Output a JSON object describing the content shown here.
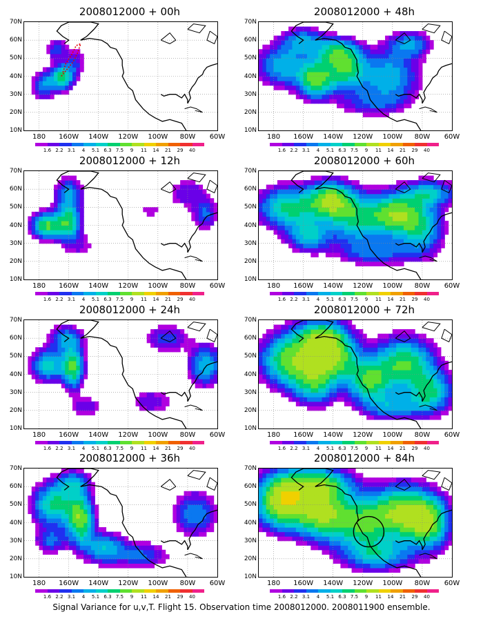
{
  "figure": {
    "caption": "Signal Variance for u,v,T. Flight 15. Observation time 2008012000. 2008011900 ensemble."
  },
  "panels": [
    {
      "title": "2008012000 + 00h",
      "lead_hours": 0
    },
    {
      "title": "2008012000 + 48h",
      "lead_hours": 48
    },
    {
      "title": "2008012000 + 12h",
      "lead_hours": 12
    },
    {
      "title": "2008012000 + 60h",
      "lead_hours": 60
    },
    {
      "title": "2008012000 + 24h",
      "lead_hours": 24
    },
    {
      "title": "2008012000 + 72h",
      "lead_hours": 72
    },
    {
      "title": "2008012000 + 36h",
      "lead_hours": 36
    },
    {
      "title": "2008012000 + 84h",
      "lead_hours": 84
    }
  ],
  "axes": {
    "lat_labels": [
      "70N",
      "60N",
      "50N",
      "40N",
      "30N",
      "20N",
      "10N"
    ],
    "lon_labels": [
      "180",
      "160W",
      "140W",
      "120W",
      "100W",
      "80W",
      "60W"
    ]
  },
  "colorbar": {
    "labels": [
      "1.6",
      "2.2",
      "3.1",
      "4",
      "5.1",
      "6.3",
      "7.5",
      "9",
      "11",
      "14",
      "21",
      "29",
      "40"
    ],
    "colors": [
      "#b000e0",
      "#6a00e8",
      "#2030f0",
      "#0a78f0",
      "#00b0e8",
      "#00d0c8",
      "#00d070",
      "#60e030",
      "#b0e020",
      "#f0d000",
      "#f0a000",
      "#f06000",
      "#f03030",
      "#f0208a"
    ]
  },
  "annotations": {
    "flight_track_color": "#e00000",
    "circle_panel": "84h"
  }
}
